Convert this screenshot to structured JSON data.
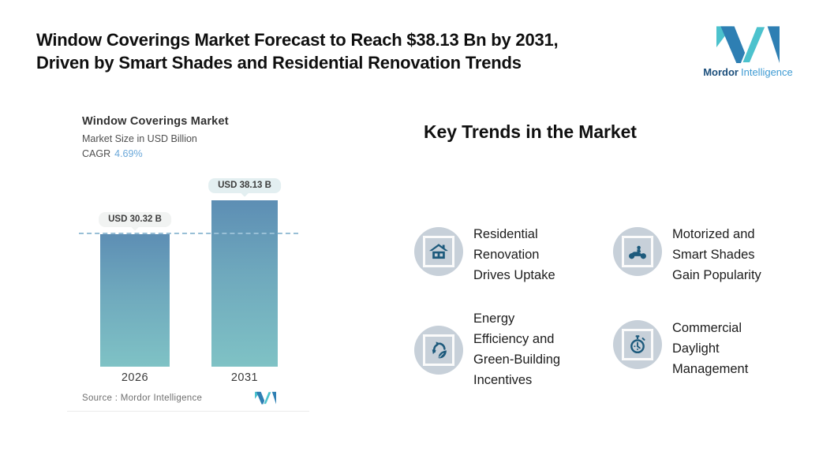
{
  "header": {
    "title": "Window Coverings Market Forecast to Reach $38.13 Bn by 2031,\nDriven by Smart Shades and Residential Renovation Trends",
    "brand": {
      "bold": "Mordor",
      "light": "Intelligence"
    }
  },
  "chart": {
    "title": "Window Coverings Market",
    "subtitle": "Market Size in USD Billion",
    "cagr_label": "CAGR",
    "cagr_value": "4.69%",
    "source_label": "Source :  Mordor Intelligence",
    "bars": [
      {
        "year": "2026",
        "label": "USD 30.32 B"
      },
      {
        "year": "2031",
        "label": "USD 38.13 B"
      }
    ]
  },
  "chart_data": {
    "type": "bar",
    "title": "Window Coverings Market",
    "subtitle": "Market Size in USD Billion",
    "cagr": "4.69%",
    "categories": [
      "2026",
      "2031"
    ],
    "values": [
      30.32,
      38.13
    ],
    "data_labels": [
      "USD 30.32 B",
      "USD 38.13 B"
    ],
    "reference_line": 30.32,
    "ylabel": "Market Size in USD Billion",
    "grid": false,
    "legend": false,
    "source": "Source :  Mordor Intelligence",
    "bar_gradient_top": "#5d8eb4",
    "bar_gradient_bottom": "#7fc2c5",
    "reference_line_color": "#98bfd6"
  },
  "trends": {
    "heading": "Key Trends in the Market",
    "items": [
      {
        "icon": "home-icon",
        "label": "Residential\nRenovation\nDrives Uptake"
      },
      {
        "icon": "motorcycle-icon",
        "label": "Motorized and\nSmart Shades\nGain Popularity"
      },
      {
        "icon": "recycle-leaf-icon",
        "label": "Energy\nEfficiency and\nGreen-Building\nIncentives"
      },
      {
        "icon": "stopwatch-icon",
        "label": "Commercial\nDaylight\nManagement"
      }
    ]
  },
  "colors": {
    "accent_blue": "#2e7fb3",
    "accent_teal": "#4cc2cd",
    "icon_circle": "#c7d0d9",
    "icon_glyph": "#1d5a7c",
    "cagr_value": "#69a7d9",
    "bubble_gray": "#f1f3f2",
    "bubble_teal": "#e3eff1"
  }
}
